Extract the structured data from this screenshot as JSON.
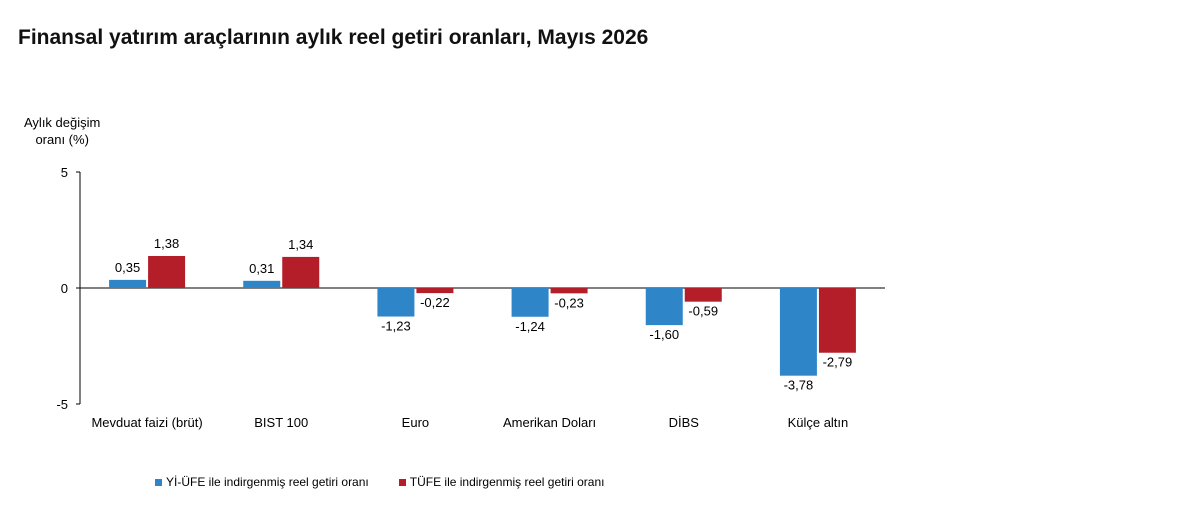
{
  "title": "Finansal yatırım araçlarının aylık reel getiri oranları, Mayıs 2026",
  "chart_data": {
    "type": "bar",
    "title": "Finansal yatırım araçlarının aylık reel getiri oranları, Mayıs 2026",
    "ylabel_line1": "Aylık değişim",
    "ylabel_line2": "oranı (%)",
    "xlabel": "",
    "ylim": [
      -5,
      5
    ],
    "yticks": [
      -5,
      0,
      5
    ],
    "ytick_labels": [
      "-5",
      "0",
      "5"
    ],
    "categories": [
      "Mevduat faizi (brüt)",
      "BIST 100",
      "Euro",
      "Amerikan Doları",
      "DİBS",
      "Külçe altın"
    ],
    "series": [
      {
        "name": "Yİ-ÜFE ile indirgenmiş reel getiri oranı",
        "color": "#2e86c9",
        "values": [
          0.35,
          0.31,
          -1.23,
          -1.24,
          -1.6,
          -3.78
        ],
        "labels": [
          "0,35",
          "0,31",
          "-1,23",
          "-1,24",
          "-1,60",
          "-3,78"
        ]
      },
      {
        "name": "TÜFE ile indirgenmiş reel getiri oranı",
        "color": "#b41e28",
        "values": [
          1.38,
          1.34,
          -0.22,
          -0.23,
          -0.59,
          -2.79
        ],
        "labels": [
          "1,38",
          "1,34",
          "-0,22",
          "-0,23",
          "-0,59",
          "-2,79"
        ]
      }
    ],
    "grid": false,
    "legend_position": "bottom"
  }
}
